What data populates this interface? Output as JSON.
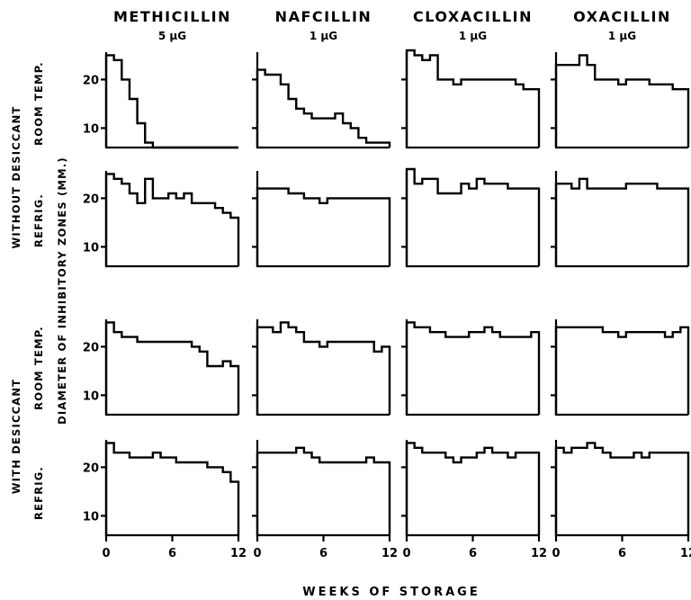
{
  "chart_data": {
    "type": "line",
    "style": "step",
    "columns": [
      {
        "name": "METHICILLIN",
        "dose": "5 μG"
      },
      {
        "name": "NAFCILLIN",
        "dose": "1 μG"
      },
      {
        "name": "CLOXACILLIN",
        "dose": "1 μG"
      },
      {
        "name": "OXACILLIN",
        "dose": "1 μG"
      }
    ],
    "groups": [
      "WITHOUT DESICCANT",
      "WITH DESICCANT"
    ],
    "rows": [
      "ROOM TEMP.",
      "REFRIG.",
      "ROOM TEMP.",
      "REFRIG."
    ],
    "ylabel": "DIAMETER OF INHIBITORY ZONES (MM.)",
    "xlabel": "WEEKS OF STORAGE",
    "yticks": [
      10,
      20
    ],
    "ylim": [
      6,
      26
    ],
    "xticks": [
      0,
      6,
      12
    ],
    "xlim": [
      0,
      12
    ],
    "panels": [
      [
        [
          25,
          24,
          20,
          16,
          11,
          7,
          6,
          6,
          6,
          6,
          6,
          6,
          6,
          6,
          6,
          6,
          6
        ],
        [
          22,
          21,
          21,
          19,
          16,
          14,
          13,
          12,
          12,
          12,
          13,
          11,
          10,
          8,
          7,
          7,
          7
        ],
        [
          26,
          25,
          24,
          25,
          20,
          20,
          19,
          20,
          20,
          20,
          20,
          20,
          20,
          20,
          19,
          18,
          18
        ],
        [
          23,
          23,
          23,
          25,
          23,
          20,
          20,
          20,
          19,
          20,
          20,
          20,
          19,
          19,
          19,
          18,
          18
        ]
      ],
      [
        [
          25,
          24,
          23,
          21,
          19,
          24,
          20,
          20,
          21,
          20,
          21,
          19,
          19,
          19,
          18,
          17,
          16
        ],
        [
          22,
          22,
          22,
          22,
          21,
          21,
          20,
          20,
          19,
          20,
          20,
          20,
          20,
          20,
          20,
          20,
          20
        ],
        [
          26,
          23,
          24,
          24,
          21,
          21,
          21,
          23,
          22,
          24,
          23,
          23,
          23,
          22,
          22,
          22,
          22
        ],
        [
          23,
          23,
          22,
          24,
          22,
          22,
          22,
          22,
          22,
          23,
          23,
          23,
          23,
          22,
          22,
          22,
          22
        ]
      ],
      [
        [
          25,
          23,
          22,
          22,
          21,
          21,
          21,
          21,
          21,
          21,
          21,
          20,
          19,
          16,
          16,
          17,
          16
        ],
        [
          24,
          24,
          23,
          25,
          24,
          23,
          21,
          21,
          20,
          21,
          21,
          21,
          21,
          21,
          21,
          19,
          20
        ],
        [
          25,
          24,
          24,
          23,
          23,
          22,
          22,
          22,
          23,
          23,
          24,
          23,
          22,
          22,
          22,
          22,
          23
        ],
        [
          24,
          24,
          24,
          24,
          24,
          24,
          23,
          23,
          22,
          23,
          23,
          23,
          23,
          23,
          22,
          23,
          24
        ]
      ],
      [
        [
          25,
          23,
          23,
          22,
          22,
          22,
          23,
          22,
          22,
          21,
          21,
          21,
          21,
          20,
          20,
          19,
          17
        ],
        [
          23,
          23,
          23,
          23,
          23,
          24,
          23,
          22,
          21,
          21,
          21,
          21,
          21,
          21,
          22,
          21,
          21
        ],
        [
          25,
          24,
          23,
          23,
          23,
          22,
          21,
          22,
          22,
          23,
          24,
          23,
          23,
          22,
          23,
          23,
          23
        ],
        [
          24,
          23,
          24,
          24,
          25,
          24,
          23,
          22,
          22,
          22,
          23,
          22,
          23,
          23,
          23,
          23,
          23
        ]
      ]
    ]
  }
}
